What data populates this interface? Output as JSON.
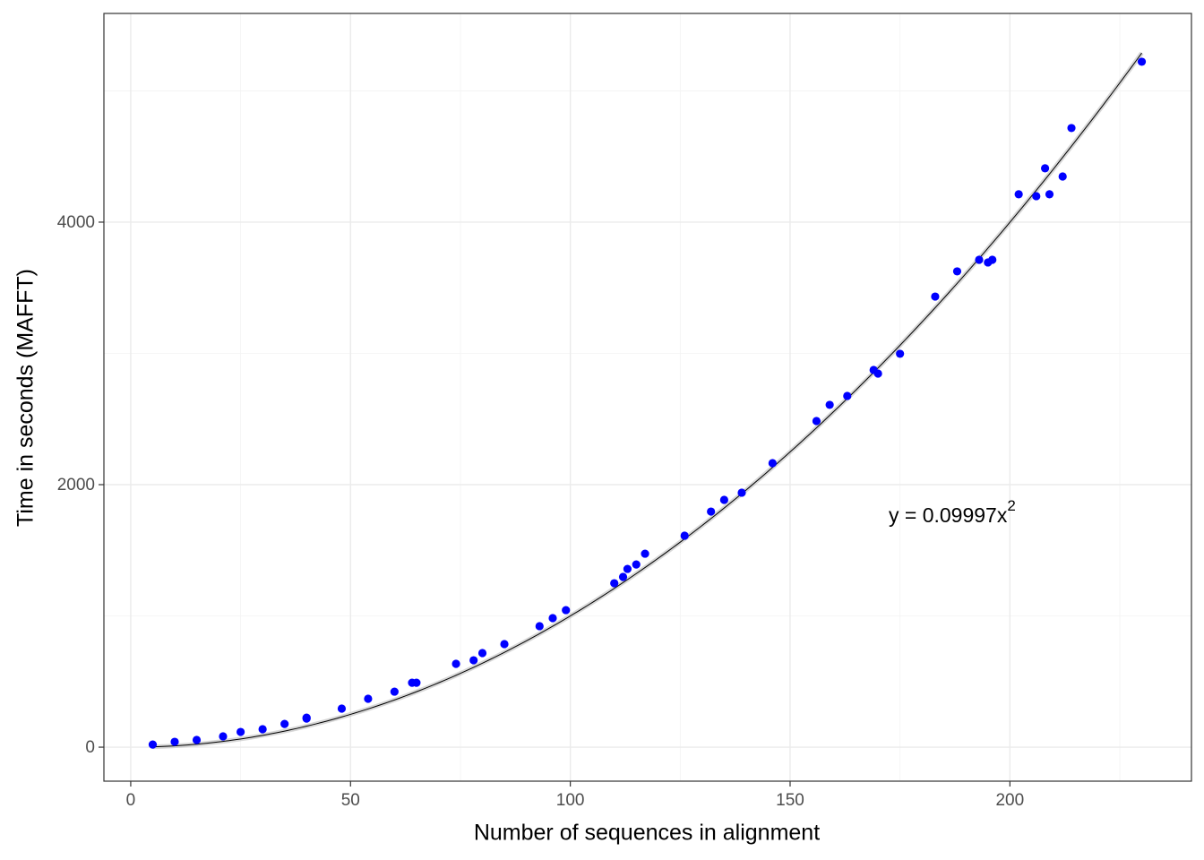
{
  "chart_data": {
    "type": "scatter",
    "x_label": "Number of sequences in alignment",
    "y_label": "Time in seconds (MAFFT)",
    "series": [
      {
        "color": "#0000ff",
        "x": [
          5,
          10,
          15,
          21,
          25,
          30,
          35,
          40,
          40,
          48,
          54,
          60,
          64,
          65,
          74,
          78,
          80,
          85,
          93,
          96,
          99,
          110,
          112,
          113,
          115,
          117,
          126,
          132,
          135,
          139,
          146,
          156,
          159,
          163,
          169,
          170,
          175,
          183,
          188,
          193,
          195,
          196,
          202,
          206,
          208,
          209,
          212,
          214,
          230
        ],
        "values": [
          20,
          41,
          55,
          82,
          116,
          137,
          177,
          225,
          218,
          294,
          369,
          423,
          491,
          491,
          635,
          662,
          717,
          785,
          922,
          983,
          1044,
          1249,
          1297,
          1358,
          1392,
          1474,
          1611,
          1795,
          1884,
          1939,
          2164,
          2485,
          2608,
          2676,
          2874,
          2846,
          2997,
          3433,
          3625,
          3713,
          3693,
          3713,
          4212,
          4198,
          4410,
          4212,
          4348,
          4717,
          5222
        ]
      }
    ],
    "fit": {
      "coefficient": 0.09997,
      "exponent": 2,
      "x_range": [
        5,
        230
      ],
      "color": "#000000"
    },
    "annotation": {
      "text": "y = 0.09997x",
      "superscript": "2"
    },
    "xlim": [
      -6.1,
      241.3
    ],
    "ylim": [
      -259,
      5590
    ],
    "xticks": [
      0,
      50,
      100,
      150,
      200
    ],
    "yticks": [
      0,
      2000,
      4000
    ],
    "x_minor_grid": [
      25,
      75,
      125,
      175,
      225
    ],
    "y_minor_grid": [
      1000,
      3000,
      5000
    ],
    "grid": true
  }
}
